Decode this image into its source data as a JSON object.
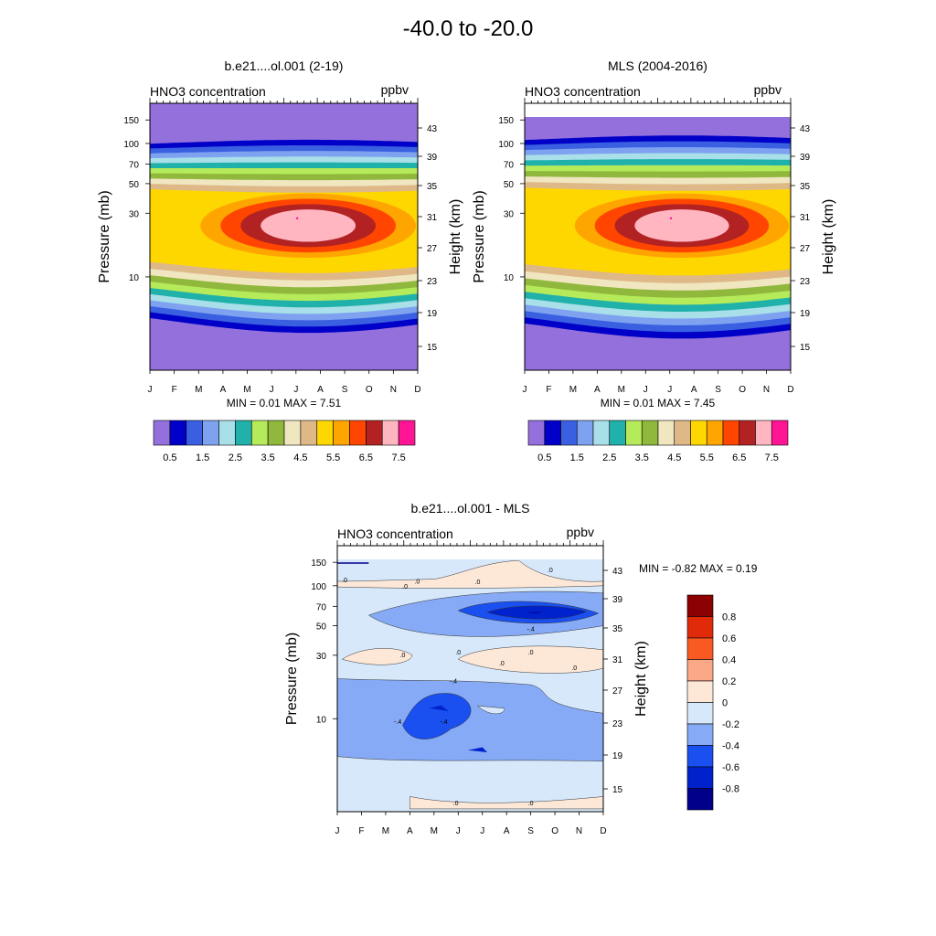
{
  "figure_title": "-40.0 to -20.0",
  "months": [
    "J",
    "F",
    "M",
    "A",
    "M",
    "J",
    "J",
    "A",
    "S",
    "O",
    "N",
    "D"
  ],
  "pressure_ticks": [
    {
      "label": "10",
      "p": 10
    },
    {
      "label": "30",
      "p": 30
    },
    {
      "label": "50",
      "p": 50
    },
    {
      "label": "70",
      "p": 70
    },
    {
      "label": "100",
      "p": 100
    },
    {
      "label": "150",
      "p": 150
    }
  ],
  "height_ticks": [
    "43",
    "39",
    "35",
    "31",
    "27",
    "23",
    "19",
    "15"
  ],
  "colors": {
    "seq": [
      "#9370db",
      "#0000c8",
      "#3a5fe0",
      "#7ea2f0",
      "#a8dfe8",
      "#20b2aa",
      "#b5ea5a",
      "#8fb83c",
      "#f0e6c0",
      "#deb887",
      "#ffd700",
      "#ffa500",
      "#ff4500",
      "#b22222",
      "#ffb6c1",
      "#ff1493"
    ],
    "div": [
      "#00008b",
      "#0022cc",
      "#1a4ff0",
      "#86aaf5",
      "#d6e8fa",
      "#fde8d8",
      "#fba886",
      "#f95a22",
      "#e02a0a",
      "#8b0000"
    ]
  },
  "chart_data": [
    {
      "type": "filled-contour",
      "title": "b.e21....ol.001 (2-19)",
      "variable_label": "HNO3 concentration",
      "units": "ppbv",
      "ylabel_left": "Pressure (mb)",
      "ylabel_right": "Height (km)",
      "x": [
        "J",
        "F",
        "M",
        "A",
        "M",
        "J",
        "J",
        "A",
        "S",
        "O",
        "N",
        "D"
      ],
      "ylim_mb": [
        200,
        2
      ],
      "min_label": "MIN =   0.01   MAX =   7.51",
      "min": 0.01,
      "max": 7.51,
      "colorbar_labels": [
        "0.5",
        "1.5",
        "2.5",
        "3.5",
        "4.5",
        "5.5",
        "6.5",
        "7.5"
      ],
      "levels": [
        0.5,
        1,
        1.5,
        2,
        2.5,
        3,
        3.5,
        4,
        4.5,
        5,
        5.5,
        6,
        6.5,
        7,
        7.5
      ],
      "peak_p_mb": 25,
      "peak_month_index": 6.5,
      "peak_value": 7.5,
      "layer_p_top_mb": 4.2,
      "layer_p_bottom_mb": 105
    },
    {
      "type": "filled-contour",
      "title": "MLS (2004-2016)",
      "variable_label": "HNO3 concentration",
      "units": "ppbv",
      "ylabel_left": "Pressure (mb)",
      "ylabel_right": "Height (km)",
      "x": [
        "J",
        "F",
        "M",
        "A",
        "M",
        "J",
        "J",
        "A",
        "S",
        "O",
        "N",
        "D"
      ],
      "ylim_mb": [
        200,
        2
      ],
      "min_label": "MIN =   0.01   MAX =   7.45",
      "min": 0.01,
      "max": 7.45,
      "colorbar_labels": [
        "0.5",
        "1.5",
        "2.5",
        "3.5",
        "4.5",
        "5.5",
        "6.5",
        "7.5"
      ],
      "levels": [
        0.5,
        1,
        1.5,
        2,
        2.5,
        3,
        3.5,
        4,
        4.5,
        5,
        5.5,
        6,
        6.5,
        7,
        7.5
      ],
      "peak_p_mb": 25,
      "peak_month_index": 6.5,
      "peak_value": 7.45,
      "layer_p_top_mb": 3.8,
      "layer_p_bottom_mb": 115
    },
    {
      "type": "filled-contour-difference",
      "title": "b.e21....ol.001 - MLS",
      "variable_label": "HNO3 concentration",
      "units": "ppbv",
      "ylabel_left": "Pressure (mb)",
      "ylabel_right": "Height (km)",
      "x": [
        "J",
        "F",
        "M",
        "A",
        "M",
        "J",
        "J",
        "A",
        "S",
        "O",
        "N",
        "D"
      ],
      "ylim_mb": [
        200,
        2
      ],
      "min_label": "MIN =  -0.82   MAX =   0.19",
      "min": -0.82,
      "max": 0.19,
      "colorbar_labels": [
        "0.8",
        "0.6",
        "0.4",
        "0.2",
        "0",
        "-0.2",
        "-0.4",
        "-0.6",
        "-0.8"
      ],
      "levels": [
        -0.8,
        -0.6,
        -0.4,
        -0.2,
        0,
        0.2,
        0.4,
        0.6,
        0.8
      ],
      "contour_labels": [
        ".0",
        ".0",
        ".0",
        ".0",
        ".0",
        ".0",
        ".0",
        ".0",
        ".0",
        ".0",
        ".0",
        ".0",
        "-.4",
        "-.4",
        "-.4",
        "-.4"
      ]
    }
  ]
}
